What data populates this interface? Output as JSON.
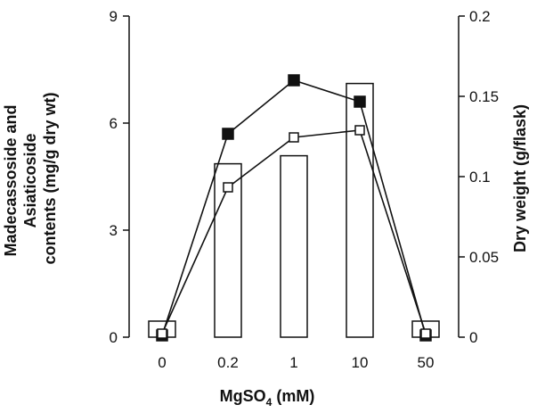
{
  "chart_data": {
    "type": "bar+line",
    "categories": [
      "0",
      "0.2",
      "1",
      "10",
      "50"
    ],
    "xlabel": "MgSO",
    "xlabel_sub": "4",
    "xlabel_unit": " (mM)",
    "ylabel_left_lines": [
      "Madecassoside and",
      "Asiaticoside",
      "contents (mg/g dry wt)"
    ],
    "ylabel_right": "Dry weight (g/flask)",
    "y_left": {
      "min": 0,
      "max": 9,
      "ticks": [
        "0",
        "3",
        "6",
        "9"
      ]
    },
    "y_right": {
      "min": 0,
      "max": 0.2,
      "ticks": [
        "0",
        "0.05",
        "0.1",
        "0.15",
        "0.2"
      ]
    },
    "bars": {
      "axis": "right",
      "values": [
        0.01,
        0.108,
        0.113,
        0.158,
        0.01
      ]
    },
    "series": [
      {
        "axis": "left",
        "marker": "filled-square",
        "values": [
          0.05,
          5.7,
          7.2,
          6.6,
          0.05
        ]
      },
      {
        "axis": "left",
        "marker": "open-square",
        "values": [
          0.1,
          4.2,
          5.6,
          5.8,
          0.1
        ]
      }
    ]
  }
}
